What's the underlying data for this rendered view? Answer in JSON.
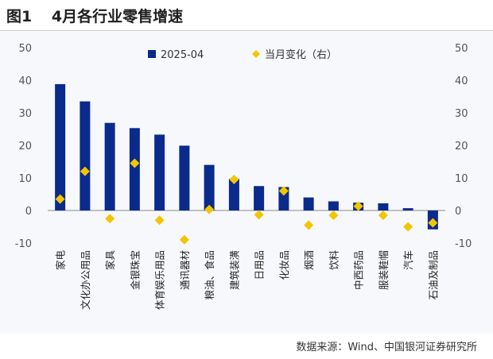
{
  "header": {
    "fig_label": "图1",
    "title": "4月各行业零售增速"
  },
  "source": "数据来源：Wind、中国银河证券研究所",
  "chart_data": {
    "type": "bar",
    "title": "4月各行业零售增速",
    "categories": [
      "家电",
      "文化办公用品",
      "家具",
      "金银珠宝",
      "体育娱乐用品",
      "通讯器材",
      "粮油、食品",
      "建筑装潢",
      "日用品",
      "化妆品",
      "烟酒",
      "饮料",
      "中西药品",
      "服装鞋帽",
      "汽车",
      "石油及制品"
    ],
    "series": [
      {
        "name": "2025-04",
        "type": "bar",
        "axis": "left",
        "color": "#0a2a8c",
        "values": [
          38.8,
          33.5,
          26.9,
          25.3,
          23.3,
          19.9,
          14.0,
          9.7,
          7.5,
          7.2,
          4.0,
          2.8,
          2.4,
          2.2,
          0.7,
          -5.8
        ]
      },
      {
        "name": "当月变化（右）",
        "type": "scatter",
        "axis": "right",
        "color": "#f5c400",
        "values": [
          3.5,
          12.0,
          -2.5,
          14.5,
          -3.0,
          -9.0,
          0.3,
          9.5,
          -1.3,
          6.0,
          -4.5,
          -1.5,
          1.3,
          -1.5,
          -5.0,
          -3.8
        ]
      }
    ],
    "ylim_left": [
      -10,
      50
    ],
    "ylim_right": [
      -10,
      50
    ],
    "yticks": [
      -10,
      0,
      10,
      20,
      30,
      40,
      50
    ],
    "legend_position": "top-center",
    "grid": false
  }
}
